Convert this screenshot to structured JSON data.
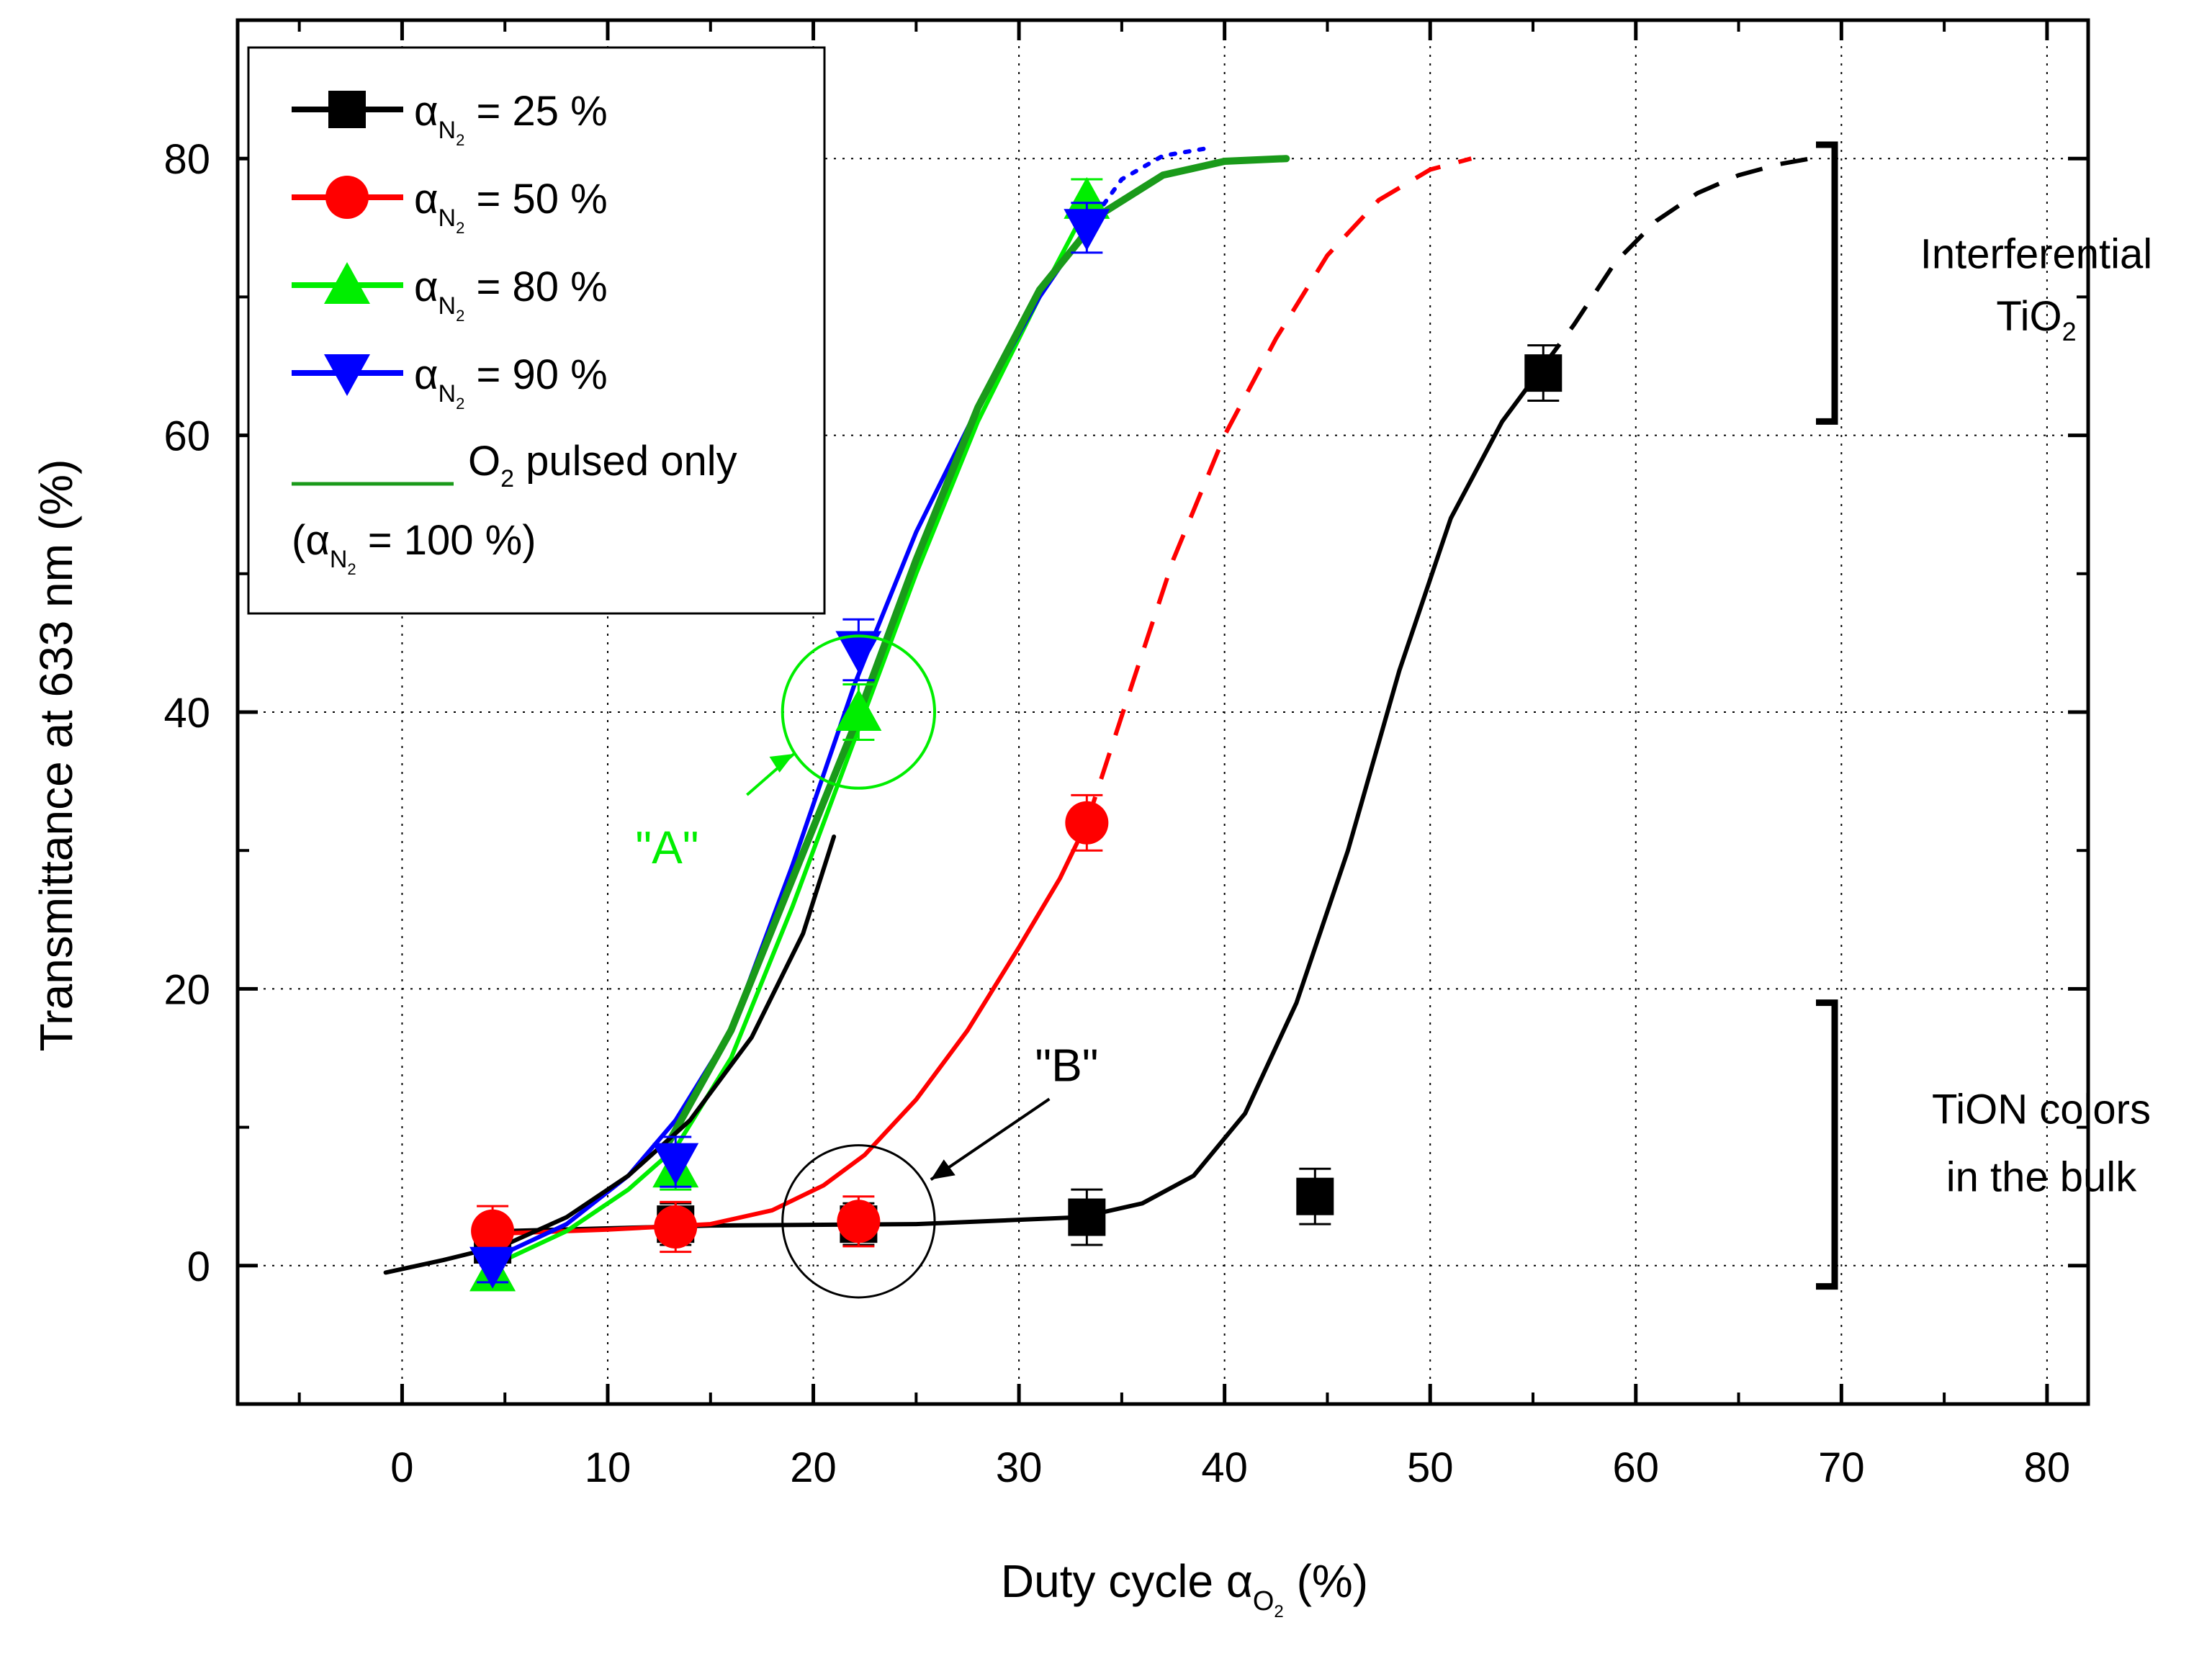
{
  "chart_data": {
    "type": "scatter",
    "xlabel_main": "Duty cycle ",
    "xlabel_symbol": "α",
    "xlabel_sub": "O",
    "xlabel_subsub": "2",
    "xlabel_unit": " (%)",
    "ylabel": "Transmittance at 633 nm (%)",
    "xlim": [
      -8,
      82
    ],
    "ylim": [
      -10,
      90
    ],
    "xticks": [
      0,
      10,
      20,
      30,
      40,
      50,
      60,
      70,
      80
    ],
    "yticks": [
      0,
      20,
      40,
      60,
      80
    ],
    "xtick_labels": [
      "0",
      "10",
      "20",
      "30",
      "40",
      "50",
      "60",
      "70",
      "80"
    ],
    "ytick_labels": [
      "0",
      "20",
      "40",
      "60",
      "80"
    ],
    "grid": true,
    "legend_position": "top-left",
    "series": [
      {
        "name": "= 25 %",
        "legend_symbol": "α",
        "legend_sub": "N",
        "legend_subsub": "2",
        "color": "#000000",
        "marker": "square",
        "points": [
          {
            "x": 4.4,
            "y": 1.5,
            "err": 1.0
          },
          {
            "x": 13.3,
            "y": 3.0,
            "err": 1.5
          },
          {
            "x": 22.2,
            "y": 3.0,
            "err": 1.5
          },
          {
            "x": 33.3,
            "y": 3.5,
            "err": 2.0
          },
          {
            "x": 44.4,
            "y": 5.0,
            "err": 2.0
          },
          {
            "x": 55.5,
            "y": 64.5,
            "err": 2.0
          }
        ],
        "fit_solid": [
          [
            5,
            2.5
          ],
          [
            15,
            2.9
          ],
          [
            25,
            3.0
          ],
          [
            33,
            3.5
          ],
          [
            36,
            4.5
          ],
          [
            38.5,
            6.5
          ],
          [
            41,
            11
          ],
          [
            43.5,
            19
          ],
          [
            46,
            30
          ],
          [
            48.5,
            43
          ],
          [
            51,
            54
          ],
          [
            53.5,
            61
          ],
          [
            55.5,
            65
          ]
        ],
        "fit_dashed": [
          [
            55.5,
            65
          ],
          [
            57,
            68
          ],
          [
            59,
            72.5
          ],
          [
            61,
            75.5
          ],
          [
            63,
            77.5
          ],
          [
            65,
            78.8
          ],
          [
            67,
            79.6
          ],
          [
            68.5,
            80
          ]
        ]
      },
      {
        "name": "= 50 %",
        "legend_symbol": "α",
        "legend_sub": "N",
        "legend_subsub": "2",
        "color": "#ff0000",
        "marker": "circle",
        "points": [
          {
            "x": 4.4,
            "y": 2.5,
            "err": 1.8
          },
          {
            "x": 13.3,
            "y": 2.8,
            "err": 1.8
          },
          {
            "x": 22.2,
            "y": 3.2,
            "err": 1.8
          },
          {
            "x": 33.3,
            "y": 32.0,
            "err": 2.0
          }
        ],
        "fit_solid": [
          [
            4.4,
            2.3
          ],
          [
            10,
            2.6
          ],
          [
            15,
            3.0
          ],
          [
            18,
            4.0
          ],
          [
            20.5,
            5.8
          ],
          [
            22.5,
            8.0
          ],
          [
            25,
            12
          ],
          [
            27.5,
            17
          ],
          [
            30,
            23
          ],
          [
            32,
            28
          ],
          [
            33.3,
            32
          ]
        ],
        "fit_dashed": [
          [
            33.3,
            32
          ],
          [
            35.5,
            42
          ],
          [
            37.5,
            51
          ],
          [
            40,
            60
          ],
          [
            42.5,
            67
          ],
          [
            45,
            73
          ],
          [
            47.5,
            77
          ],
          [
            50,
            79.2
          ],
          [
            52,
            80
          ]
        ]
      },
      {
        "name": "= 80 %",
        "legend_symbol": "α",
        "legend_sub": "N",
        "legend_subsub": "2",
        "color": "#00ee00",
        "marker": "triangle-up",
        "points": [
          {
            "x": 4.4,
            "y": -0.5,
            "err": 1.2
          },
          {
            "x": 13.3,
            "y": 7.0,
            "err": 1.5
          },
          {
            "x": 22.2,
            "y": 40.0,
            "err": 2.0
          },
          {
            "x": 33.3,
            "y": 77.0,
            "err": 1.5
          }
        ],
        "fit_solid": [
          [
            4.4,
            0
          ],
          [
            8,
            2.5
          ],
          [
            11,
            5.5
          ],
          [
            13.3,
            8.5
          ],
          [
            16,
            15
          ],
          [
            19,
            26
          ],
          [
            22,
            38
          ],
          [
            25,
            50
          ],
          [
            28,
            61
          ],
          [
            31,
            70
          ],
          [
            33.3,
            76.5
          ]
        ]
      },
      {
        "name": "= 90 %",
        "legend_symbol": "α",
        "legend_sub": "N",
        "legend_subsub": "2",
        "color": "#0000ff",
        "marker": "triangle-down",
        "points": [
          {
            "x": 4.4,
            "y": 0,
            "err": 1.2
          },
          {
            "x": 13.3,
            "y": 7.5,
            "err": 1.8
          },
          {
            "x": 22.2,
            "y": 44.5,
            "err": 2.2
          },
          {
            "x": 33.3,
            "y": 75.0,
            "err": 1.8
          }
        ],
        "fit_solid": [
          [
            4.4,
            0.5
          ],
          [
            8,
            3
          ],
          [
            11,
            6.5
          ],
          [
            13.3,
            10.5
          ],
          [
            16,
            17
          ],
          [
            19,
            29
          ],
          [
            22,
            42
          ],
          [
            25,
            53
          ],
          [
            28,
            62
          ],
          [
            31,
            70
          ],
          [
            33.3,
            75
          ]
        ],
        "fit_dotted": [
          [
            33.3,
            75
          ],
          [
            35,
            78.5
          ],
          [
            37,
            80.2
          ],
          [
            39,
            80.7
          ]
        ]
      },
      {
        "name": "O",
        "legend_sub": "2",
        "legend_suffix": " pulsed only",
        "legend_line2_prefix": "(",
        "legend_line2_symbol": "α",
        "legend_line2_sub": "N",
        "legend_line2_subsub": "2",
        "legend_line2_suffix": " = 100 %)",
        "color": "#1a9a1a",
        "marker": "none",
        "fit_solid": [
          [
            13,
            9
          ],
          [
            16,
            17
          ],
          [
            19,
            28
          ],
          [
            22,
            39
          ],
          [
            25,
            51
          ],
          [
            28,
            62
          ],
          [
            31,
            70.5
          ],
          [
            34,
            76
          ],
          [
            37,
            78.8
          ],
          [
            40,
            79.8
          ],
          [
            43,
            80
          ]
        ]
      },
      {
        "name": "",
        "color": "#000000",
        "marker": "none",
        "fit_solid": [
          [
            -0.8,
            -0.5
          ],
          [
            2,
            0.4
          ],
          [
            5,
            1.5
          ],
          [
            8,
            3.5
          ],
          [
            11,
            6.5
          ],
          [
            14,
            10.5
          ],
          [
            17,
            16.5
          ],
          [
            19.5,
            24
          ],
          [
            21,
            31
          ]
        ]
      }
    ],
    "annotations": {
      "A": {
        "text": "\"A\"",
        "color": "#00ee00",
        "circle_center": [
          22.2,
          40
        ],
        "circle_radius_x": 3.7
      },
      "B": {
        "text": "\"B\"",
        "color": "#000000",
        "circle_center": [
          22.2,
          3.2
        ],
        "circle_radius_x": 3.7
      },
      "bracket_top": {
        "line1": "Interferential",
        "line2_main": "TiO",
        "line2_sub": "2",
        "y_range": [
          61,
          81
        ]
      },
      "bracket_bottom": {
        "line1": "TiON colors",
        "line2": "in the bulk",
        "y_range": [
          -1.5,
          19
        ]
      }
    }
  }
}
